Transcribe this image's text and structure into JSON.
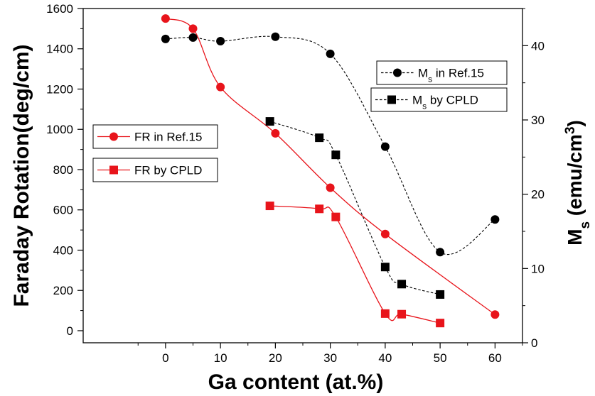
{
  "chart_data": {
    "type": "scatter",
    "xlabel": "Ga content (at.%)",
    "ylabel_left": "Faraday Rotation(deg/cm)",
    "ylabel_right": {
      "main": "M",
      "sub": "s",
      "unit_open": " (emu/cm",
      "unit_sup": "3",
      "unit_close": ")"
    },
    "xlim": [
      -15,
      65
    ],
    "ylim_left": [
      -60,
      1600
    ],
    "ylim_right": [
      0,
      45
    ],
    "x_ticks": [
      0,
      10,
      20,
      30,
      40,
      50,
      60
    ],
    "y_left_ticks": [
      0,
      200,
      400,
      600,
      800,
      1000,
      1200,
      1400,
      1600
    ],
    "y_right_ticks": [
      0,
      10,
      20,
      30,
      40
    ],
    "grid": false,
    "series": [
      {
        "name": "M_s in Ref.15",
        "legend": {
          "main": "M",
          "sub": "s",
          "rest": " in Ref.15"
        },
        "axis": "right",
        "marker": "circle",
        "color": "#000000",
        "line": "dashed",
        "x": [
          0,
          5,
          10,
          20,
          30,
          40,
          50,
          60
        ],
        "y": [
          40.9,
          41.1,
          40.6,
          41.2,
          38.9,
          26.4,
          12.2,
          16.6
        ]
      },
      {
        "name": "M_s by CPLD",
        "legend": {
          "main": "M",
          "sub": "s",
          "rest": " by CPLD"
        },
        "axis": "right",
        "marker": "square",
        "color": "#000000",
        "line": "dashed",
        "x": [
          19,
          28,
          31,
          40,
          43,
          50
        ],
        "y": [
          29.8,
          27.6,
          25.3,
          10.2,
          7.9,
          6.5
        ]
      },
      {
        "name": "FR in Ref.15",
        "legend": {
          "main": "FR in Ref.15",
          "sub": "",
          "rest": ""
        },
        "axis": "left",
        "marker": "circle",
        "color": "#e8141b",
        "line": "solid",
        "x": [
          0,
          5,
          10,
          20,
          30,
          40,
          60
        ],
        "y": [
          1550,
          1500,
          1210,
          980,
          710,
          480,
          80
        ]
      },
      {
        "name": "FR by CPLD",
        "legend": {
          "main": "FR by CPLD",
          "sub": "",
          "rest": ""
        },
        "axis": "left",
        "marker": "square",
        "color": "#e8141b",
        "line": "solid",
        "x": [
          19,
          28,
          31,
          40,
          43,
          50
        ],
        "y": [
          620,
          605,
          565,
          85,
          82,
          38
        ]
      }
    ]
  }
}
